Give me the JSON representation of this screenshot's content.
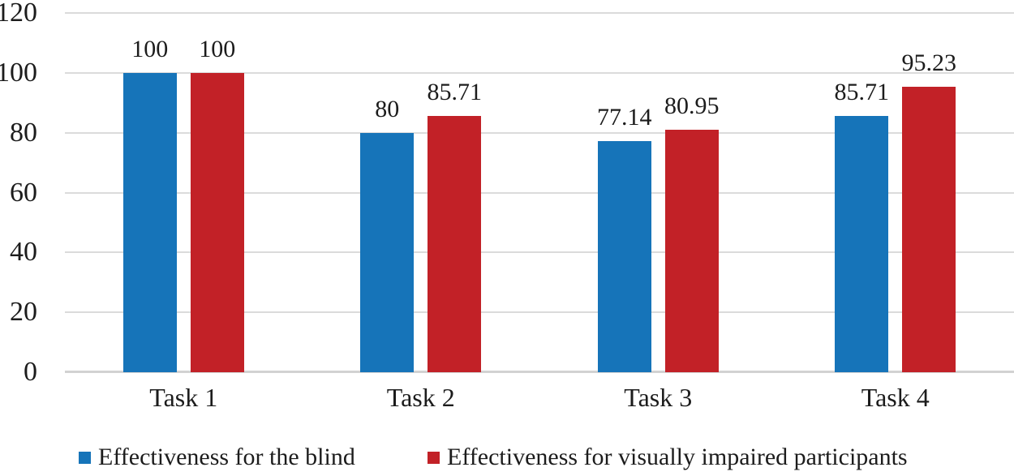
{
  "chart_data": {
    "type": "bar",
    "title": "",
    "xlabel": "",
    "ylabel": "",
    "categories": [
      "Task 1",
      "Task 2",
      "Task 3",
      "Task 4"
    ],
    "series": [
      {
        "name": "Effectiveness for the blind",
        "color": "#1674b9",
        "values": [
          100,
          80,
          77.14,
          85.71
        ],
        "labels": [
          "100",
          "80",
          "77.14",
          "85.71"
        ]
      },
      {
        "name": "Effectiveness for visually impaired participants",
        "color": "#c22127",
        "values": [
          100,
          85.71,
          80.95,
          95.23
        ],
        "labels": [
          "100",
          "85.71",
          "80.95",
          "95.23"
        ]
      }
    ],
    "ylim": [
      0,
      120
    ],
    "yticks": [
      0,
      20,
      40,
      60,
      80,
      100,
      120
    ],
    "grid": true,
    "legend_position": "bottom",
    "colors": {
      "background": "#ffffff",
      "gridline": "#dbdbdb",
      "axis_line": "#d2d2d2",
      "text": "#1c1c1c"
    }
  }
}
